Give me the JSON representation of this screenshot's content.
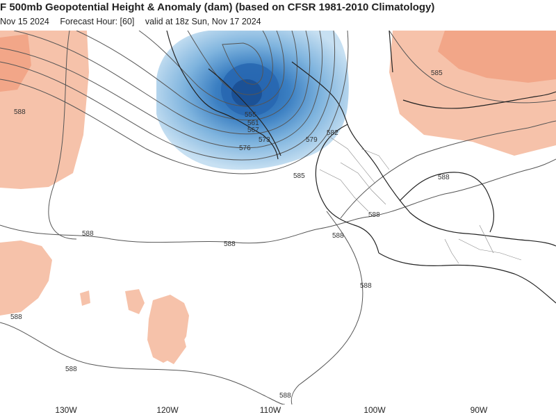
{
  "header": {
    "title": "F 500mb Geopotential Height & Anomaly (dam) (based on CFSR 1981-2010 Climatology)",
    "init": "Nov 15 2024",
    "forecast_hour": "Forecast Hour: [60]",
    "valid": "valid at 18z Sun, Nov 17 2024"
  },
  "map": {
    "contour_labels": [
      "588",
      "588",
      "588",
      "588",
      "588",
      "588",
      "588",
      "588",
      "588",
      "588",
      "585",
      "585",
      "582",
      "579",
      "576",
      "573",
      "567",
      "561",
      "555"
    ],
    "longitudes": [
      "130W",
      "120W",
      "110W",
      "100W",
      "90W"
    ],
    "colors": {
      "positive_anomaly": "#f5b49a",
      "negative_anomaly_core": "#1f5fa8",
      "negative_anomaly_edge": "#b9d8ee",
      "contour": "#444444",
      "coast": "#222222"
    }
  }
}
